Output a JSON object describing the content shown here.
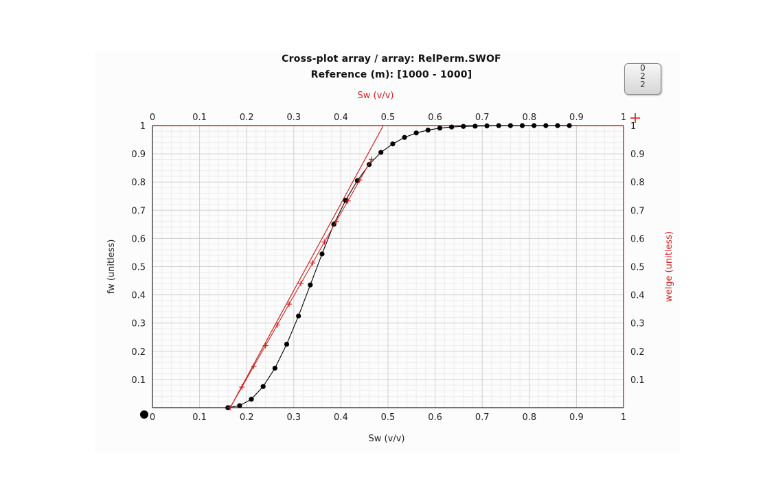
{
  "chart_data": {
    "type": "scatter",
    "title": "Cross-plot array / array: RelPerm.SWOF",
    "subtitle": "Reference (m): [1000 - 1000]",
    "xlabel": "Sw (v/v)",
    "x2label": "Sw (v/v)",
    "ylabel": "fw (unitless)",
    "y2label": "welge (unitless)",
    "xlim": [
      0,
      1
    ],
    "ylim": [
      0,
      1
    ],
    "xticks": [
      "0",
      "0.1",
      "0.2",
      "0.3",
      "0.4",
      "0.5",
      "0.6",
      "0.7",
      "0.8",
      "0.9",
      "1"
    ],
    "yticks": [
      "0.1",
      "0.2",
      "0.3",
      "0.4",
      "0.5",
      "0.6",
      "0.7",
      "0.8",
      "0.9",
      "1"
    ],
    "grid": true,
    "series": [
      {
        "marker": "circle",
        "color": "#000000",
        "axis": "left",
        "x": [
          0.16,
          0.185,
          0.21,
          0.235,
          0.26,
          0.285,
          0.31,
          0.335,
          0.36,
          0.385,
          0.41,
          0.435,
          0.46,
          0.485,
          0.51,
          0.535,
          0.56,
          0.585,
          0.61,
          0.635,
          0.66,
          0.685,
          0.71,
          0.735,
          0.76,
          0.785,
          0.81,
          0.835,
          0.86,
          0.885
        ],
        "y": [
          0.0,
          0.007,
          0.03,
          0.075,
          0.14,
          0.225,
          0.325,
          0.435,
          0.545,
          0.65,
          0.735,
          0.805,
          0.862,
          0.905,
          0.935,
          0.958,
          0.974,
          0.984,
          0.991,
          0.995,
          0.997,
          0.998,
          0.999,
          1.0,
          1.0,
          1.0,
          1.0,
          1.0,
          1.0,
          1.0
        ]
      },
      {
        "marker": "plus",
        "color": "#cc2222",
        "axis": "right",
        "x": [
          0.165,
          0.19,
          0.215,
          0.24,
          0.265,
          0.29,
          0.315,
          0.34,
          0.365,
          0.39,
          0.415,
          0.44,
          0.465
        ],
        "y": [
          0.0,
          0.073,
          0.147,
          0.22,
          0.293,
          0.367,
          0.44,
          0.513,
          0.587,
          0.66,
          0.733,
          0.807,
          0.88
        ]
      }
    ],
    "tangent_line": {
      "x": [
        0.165,
        0.49
      ],
      "y": [
        0.0,
        1.0
      ],
      "color": "#cc2222"
    },
    "extra_red_marker": {
      "x": 1.0,
      "y": 1.0
    }
  },
  "legend": {
    "items": [
      "0",
      "2",
      "2"
    ]
  }
}
